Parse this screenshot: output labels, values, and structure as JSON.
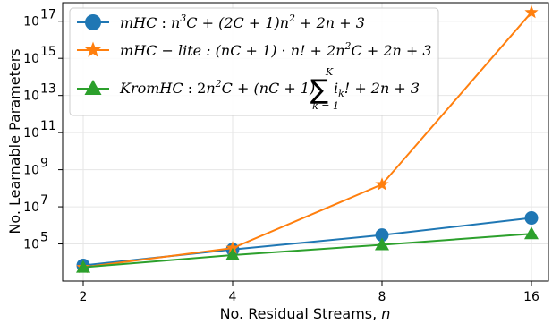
{
  "chart_data": {
    "type": "line",
    "xlabel": "No. Residual Streams, ",
    "xlabel_var": "n",
    "ylabel": "No. Learnable Parameters",
    "x_scale": "log2",
    "y_scale": "log10",
    "x": [
      2,
      4,
      8,
      16
    ],
    "x_tick_labels": [
      "2",
      "4",
      "8",
      "16"
    ],
    "ylim": [
      1000,
      1e+18
    ],
    "y_ticks": [
      {
        "value": 100000.0,
        "base": "10",
        "exp": "5"
      },
      {
        "value": 10000000.0,
        "base": "10",
        "exp": "7"
      },
      {
        "value": 1000000000.0,
        "base": "10",
        "exp": "9"
      },
      {
        "value": 100000000000.0,
        "base": "10",
        "exp": "11"
      },
      {
        "value": 10000000000000.0,
        "base": "10",
        "exp": "13"
      },
      {
        "value": 1000000000000000.0,
        "base": "10",
        "exp": "15"
      },
      {
        "value": 1e+17,
        "base": "10",
        "exp": "17"
      }
    ],
    "grid": true,
    "legend_position": "top-left",
    "series": [
      {
        "name": "mHC : n³C + (2C + 1)n² + 2n + 3",
        "color": "#1f77b4",
        "marker": "circle",
        "values": [
          7000,
          50000,
          300000,
          2500000
        ]
      },
      {
        "name": "mHC − lite : (nC + 1) · n! + 2n²C + 2n + 3",
        "color": "#ff7f0e",
        "marker": "star",
        "values": [
          5500,
          60000,
          160000000,
          300000000000000000
        ]
      },
      {
        "name": "KromHC : 2n²C + (nC + 1) Σ_{k=1}^{K} i_k! + 2n + 3",
        "color": "#2ca02c",
        "marker": "triangle",
        "values": [
          5500,
          25000,
          90000,
          350000
        ]
      }
    ],
    "legend_math": {
      "mhc": {
        "a": "mHC",
        "b": " : ",
        "c": "n",
        "d": "3",
        "e": "C + (2C + 1)",
        "f": "n",
        "g": "2",
        "h": " + 2n + 3"
      },
      "lite": {
        "a": "mHC",
        "b": " − ",
        "c": "lite",
        "d": " : (nC + 1) · n! + 2",
        "e": "n",
        "f": "2",
        "g": "C + 2n + 3"
      },
      "krom": {
        "a": "KromHC",
        "b": " : 2",
        "c": "n",
        "d": "2",
        "e": "C + (nC + 1) ",
        "sum": "∑",
        "sum_top": "K",
        "sum_bottom": "k = 1",
        "f": " i",
        "g": "k",
        "h": "! + 2n + 3"
      }
    }
  }
}
